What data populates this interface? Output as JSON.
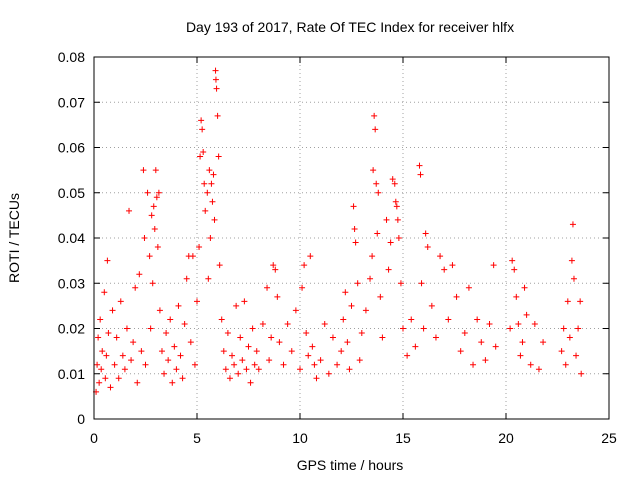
{
  "chart_data": {
    "type": "scatter",
    "title": "Day 193 of 2017, Rate Of TEC Index for receiver hlfx",
    "xlabel": "GPS time / hours",
    "ylabel": "ROTI / TECUs",
    "xlim": [
      0,
      25
    ],
    "ylim": [
      0,
      0.08
    ],
    "xticks": [
      "0",
      "5",
      "10",
      "15",
      "20",
      "25"
    ],
    "yticks": [
      "0",
      "0.01",
      "0.02",
      "0.03",
      "0.04",
      "0.05",
      "0.06",
      "0.07",
      "0.08"
    ],
    "grid": true,
    "marker": "+",
    "color": "#ff0000",
    "points": [
      [
        0.1,
        0.006
      ],
      [
        0.15,
        0.012
      ],
      [
        0.2,
        0.018
      ],
      [
        0.25,
        0.008
      ],
      [
        0.3,
        0.022
      ],
      [
        0.35,
        0.011
      ],
      [
        0.4,
        0.015
      ],
      [
        0.5,
        0.028
      ],
      [
        0.55,
        0.009
      ],
      [
        0.6,
        0.014
      ],
      [
        0.65,
        0.035
      ],
      [
        0.7,
        0.019
      ],
      [
        0.8,
        0.007
      ],
      [
        0.9,
        0.024
      ],
      [
        1.0,
        0.012
      ],
      [
        1.1,
        0.018
      ],
      [
        1.2,
        0.009
      ],
      [
        1.3,
        0.026
      ],
      [
        1.4,
        0.014
      ],
      [
        1.5,
        0.011
      ],
      [
        1.6,
        0.02
      ],
      [
        1.7,
        0.046
      ],
      [
        1.8,
        0.013
      ],
      [
        1.9,
        0.017
      ],
      [
        2.0,
        0.029
      ],
      [
        2.1,
        0.008
      ],
      [
        2.2,
        0.032
      ],
      [
        2.3,
        0.015
      ],
      [
        2.4,
        0.055
      ],
      [
        2.45,
        0.04
      ],
      [
        2.5,
        0.012
      ],
      [
        2.6,
        0.05
      ],
      [
        2.7,
        0.036
      ],
      [
        2.75,
        0.02
      ],
      [
        2.8,
        0.045
      ],
      [
        2.85,
        0.03
      ],
      [
        2.9,
        0.047
      ],
      [
        2.95,
        0.042
      ],
      [
        3.0,
        0.055
      ],
      [
        3.05,
        0.049
      ],
      [
        3.1,
        0.038
      ],
      [
        3.15,
        0.05
      ],
      [
        3.2,
        0.024
      ],
      [
        3.3,
        0.015
      ],
      [
        3.4,
        0.01
      ],
      [
        3.5,
        0.019
      ],
      [
        3.6,
        0.013
      ],
      [
        3.7,
        0.022
      ],
      [
        3.8,
        0.008
      ],
      [
        3.9,
        0.016
      ],
      [
        4.0,
        0.011
      ],
      [
        4.1,
        0.025
      ],
      [
        4.2,
        0.014
      ],
      [
        4.3,
        0.009
      ],
      [
        4.4,
        0.021
      ],
      [
        4.5,
        0.031
      ],
      [
        4.6,
        0.036
      ],
      [
        4.7,
        0.017
      ],
      [
        4.8,
        0.036
      ],
      [
        4.9,
        0.012
      ],
      [
        5.0,
        0.026
      ],
      [
        5.1,
        0.038
      ],
      [
        5.15,
        0.058
      ],
      [
        5.2,
        0.066
      ],
      [
        5.25,
        0.064
      ],
      [
        5.3,
        0.059
      ],
      [
        5.35,
        0.052
      ],
      [
        5.4,
        0.046
      ],
      [
        5.5,
        0.05
      ],
      [
        5.55,
        0.031
      ],
      [
        5.6,
        0.055
      ],
      [
        5.65,
        0.04
      ],
      [
        5.7,
        0.052
      ],
      [
        5.75,
        0.048
      ],
      [
        5.8,
        0.054
      ],
      [
        5.85,
        0.044
      ],
      [
        5.9,
        0.077
      ],
      [
        5.92,
        0.075
      ],
      [
        5.95,
        0.073
      ],
      [
        6.0,
        0.067
      ],
      [
        6.05,
        0.058
      ],
      [
        6.1,
        0.034
      ],
      [
        6.2,
        0.022
      ],
      [
        6.3,
        0.015
      ],
      [
        6.4,
        0.011
      ],
      [
        6.5,
        0.019
      ],
      [
        6.6,
        0.009
      ],
      [
        6.7,
        0.014
      ],
      [
        6.8,
        0.012
      ],
      [
        6.9,
        0.025
      ],
      [
        7.0,
        0.01
      ],
      [
        7.1,
        0.018
      ],
      [
        7.2,
        0.013
      ],
      [
        7.3,
        0.026
      ],
      [
        7.4,
        0.011
      ],
      [
        7.5,
        0.016
      ],
      [
        7.6,
        0.008
      ],
      [
        7.7,
        0.02
      ],
      [
        7.8,
        0.012
      ],
      [
        7.9,
        0.015
      ],
      [
        8.0,
        0.011
      ],
      [
        8.2,
        0.021
      ],
      [
        8.4,
        0.029
      ],
      [
        8.5,
        0.013
      ],
      [
        8.6,
        0.018
      ],
      [
        8.7,
        0.034
      ],
      [
        8.8,
        0.033
      ],
      [
        8.9,
        0.027
      ],
      [
        9.0,
        0.017
      ],
      [
        9.2,
        0.012
      ],
      [
        9.4,
        0.021
      ],
      [
        9.6,
        0.015
      ],
      [
        9.8,
        0.024
      ],
      [
        10.0,
        0.011
      ],
      [
        10.1,
        0.029
      ],
      [
        10.2,
        0.034
      ],
      [
        10.3,
        0.019
      ],
      [
        10.4,
        0.014
      ],
      [
        10.5,
        0.036
      ],
      [
        10.6,
        0.016
      ],
      [
        10.7,
        0.012
      ],
      [
        10.8,
        0.009
      ],
      [
        11.0,
        0.013
      ],
      [
        11.2,
        0.021
      ],
      [
        11.4,
        0.01
      ],
      [
        11.6,
        0.018
      ],
      [
        11.8,
        0.012
      ],
      [
        12.0,
        0.015
      ],
      [
        12.1,
        0.022
      ],
      [
        12.2,
        0.028
      ],
      [
        12.3,
        0.017
      ],
      [
        12.4,
        0.011
      ],
      [
        12.5,
        0.025
      ],
      [
        12.6,
        0.047
      ],
      [
        12.65,
        0.042
      ],
      [
        12.7,
        0.039
      ],
      [
        12.8,
        0.03
      ],
      [
        12.9,
        0.013
      ],
      [
        13.0,
        0.019
      ],
      [
        13.2,
        0.024
      ],
      [
        13.4,
        0.031
      ],
      [
        13.5,
        0.036
      ],
      [
        13.55,
        0.055
      ],
      [
        13.6,
        0.067
      ],
      [
        13.65,
        0.064
      ],
      [
        13.7,
        0.052
      ],
      [
        13.75,
        0.041
      ],
      [
        13.8,
        0.05
      ],
      [
        13.9,
        0.027
      ],
      [
        14.0,
        0.018
      ],
      [
        14.2,
        0.044
      ],
      [
        14.3,
        0.033
      ],
      [
        14.4,
        0.039
      ],
      [
        14.5,
        0.053
      ],
      [
        14.6,
        0.052
      ],
      [
        14.65,
        0.048
      ],
      [
        14.7,
        0.047
      ],
      [
        14.75,
        0.044
      ],
      [
        14.8,
        0.04
      ],
      [
        14.9,
        0.03
      ],
      [
        15.0,
        0.02
      ],
      [
        15.2,
        0.014
      ],
      [
        15.4,
        0.022
      ],
      [
        15.6,
        0.016
      ],
      [
        15.8,
        0.056
      ],
      [
        15.85,
        0.054
      ],
      [
        15.9,
        0.03
      ],
      [
        16.0,
        0.02
      ],
      [
        16.1,
        0.041
      ],
      [
        16.2,
        0.038
      ],
      [
        16.4,
        0.025
      ],
      [
        16.6,
        0.018
      ],
      [
        16.8,
        0.036
      ],
      [
        17.0,
        0.033
      ],
      [
        17.2,
        0.022
      ],
      [
        17.4,
        0.034
      ],
      [
        17.6,
        0.027
      ],
      [
        17.8,
        0.015
      ],
      [
        18.0,
        0.019
      ],
      [
        18.2,
        0.029
      ],
      [
        18.4,
        0.012
      ],
      [
        18.6,
        0.022
      ],
      [
        18.8,
        0.017
      ],
      [
        19.0,
        0.013
      ],
      [
        19.2,
        0.021
      ],
      [
        19.4,
        0.034
      ],
      [
        19.5,
        0.016
      ],
      [
        20.2,
        0.02
      ],
      [
        20.3,
        0.035
      ],
      [
        20.4,
        0.033
      ],
      [
        20.5,
        0.027
      ],
      [
        20.6,
        0.021
      ],
      [
        20.7,
        0.014
      ],
      [
        20.8,
        0.017
      ],
      [
        20.9,
        0.029
      ],
      [
        21.0,
        0.023
      ],
      [
        21.2,
        0.012
      ],
      [
        21.4,
        0.021
      ],
      [
        21.6,
        0.011
      ],
      [
        21.8,
        0.017
      ],
      [
        22.7,
        0.015
      ],
      [
        22.8,
        0.02
      ],
      [
        22.9,
        0.012
      ],
      [
        23.0,
        0.026
      ],
      [
        23.1,
        0.018
      ],
      [
        23.2,
        0.035
      ],
      [
        23.25,
        0.043
      ],
      [
        23.3,
        0.031
      ],
      [
        23.4,
        0.014
      ],
      [
        23.5,
        0.02
      ],
      [
        23.6,
        0.026
      ],
      [
        23.65,
        0.01
      ]
    ]
  }
}
